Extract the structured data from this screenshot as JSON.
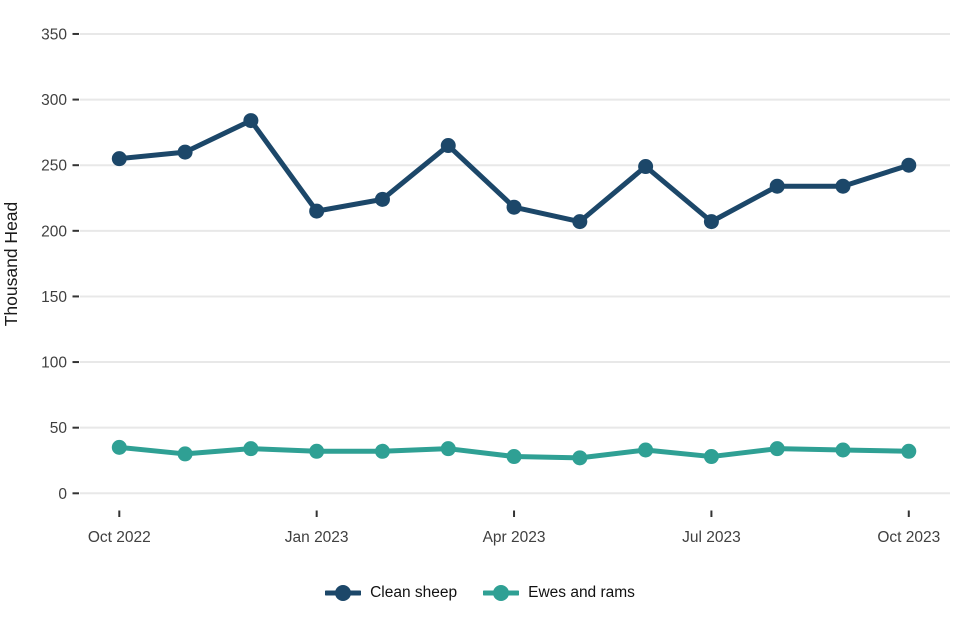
{
  "chart_data": {
    "type": "line",
    "title": "",
    "xlabel": "",
    "ylabel": "Thousand Head",
    "x": [
      "Oct 2022",
      "Nov 2022",
      "Dec 2022",
      "Jan 2023",
      "Feb 2023",
      "Mar 2023",
      "Apr 2023",
      "May 2023",
      "Jun 2023",
      "Jul 2023",
      "Aug 2023",
      "Sep 2023",
      "Oct 2023"
    ],
    "x_tick_indices": [
      0,
      3,
      6,
      9,
      12
    ],
    "x_tick_labels": [
      "Oct 2022",
      "Jan 2023",
      "Apr 2023",
      "Jul 2023",
      "Oct 2023"
    ],
    "y_ticks": [
      0,
      50,
      100,
      150,
      200,
      250,
      300,
      350
    ],
    "ylim": [
      0,
      365
    ],
    "grid": true,
    "legend_position": "bottom",
    "series": [
      {
        "name": "Clean sheep",
        "color": "#1C4769",
        "values": [
          255,
          260,
          284,
          215,
          224,
          265,
          218,
          207,
          249,
          207,
          234,
          234,
          250
        ]
      },
      {
        "name": "Ewes and rams",
        "color": "#2FA094",
        "values": [
          35,
          30,
          34,
          32,
          32,
          34,
          28,
          27,
          33,
          28,
          34,
          33,
          32
        ]
      }
    ]
  },
  "colors": {
    "gridline": "#e8e8e8",
    "tick": "#333333",
    "axis_text": "#404040",
    "axis_title": "#1a1a1a",
    "background": "#ffffff"
  }
}
